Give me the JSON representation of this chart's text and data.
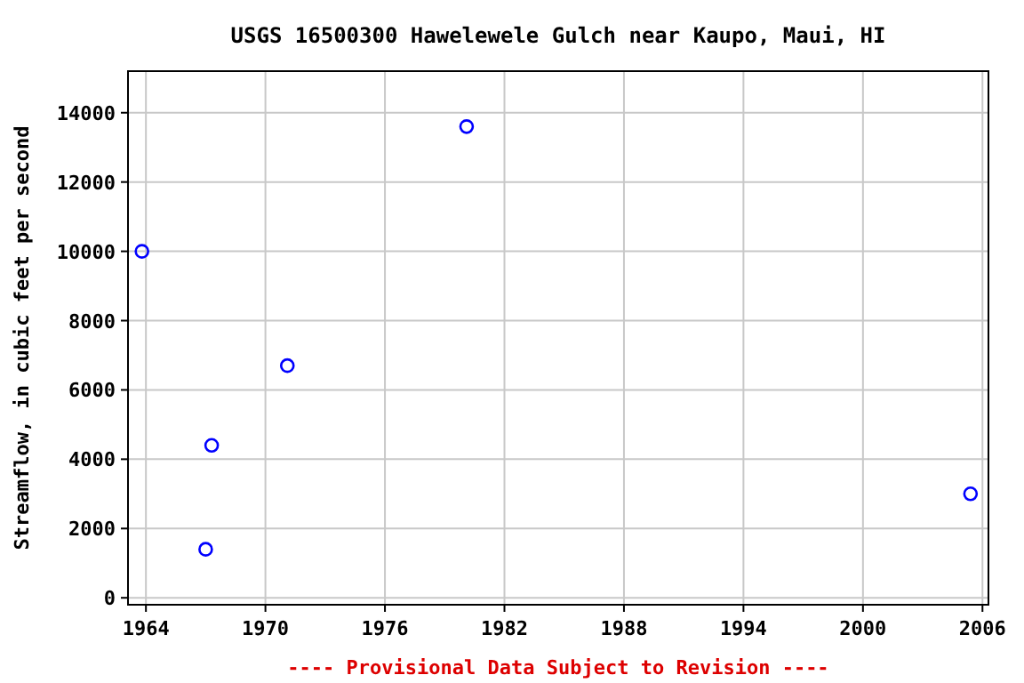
{
  "chart_data": {
    "type": "scatter",
    "title": "USGS 16500300 Hawelewele Gulch near Kaupo, Maui, HI",
    "ylabel": "Streamflow, in cubic feet per second",
    "annotations": [
      "---- Provisional Data Subject to Revision ----"
    ],
    "x": [
      1963.8,
      1967.0,
      1967.3,
      1971.1,
      1980.1,
      2005.4
    ],
    "series": [
      {
        "color": "#0000ff",
        "values": [
          10000,
          1400,
          4400,
          6700,
          13600,
          3000
        ]
      }
    ],
    "xlim": [
      1963.1,
      2006.3
    ],
    "xticks": [
      1964,
      1970,
      1976,
      1982,
      1988,
      1994,
      2000,
      2006
    ],
    "ylim": [
      -200,
      15200
    ],
    "yticks": [
      0,
      2000,
      4000,
      6000,
      8000,
      10000,
      12000,
      14000
    ],
    "grid": true,
    "marker": "circle"
  }
}
